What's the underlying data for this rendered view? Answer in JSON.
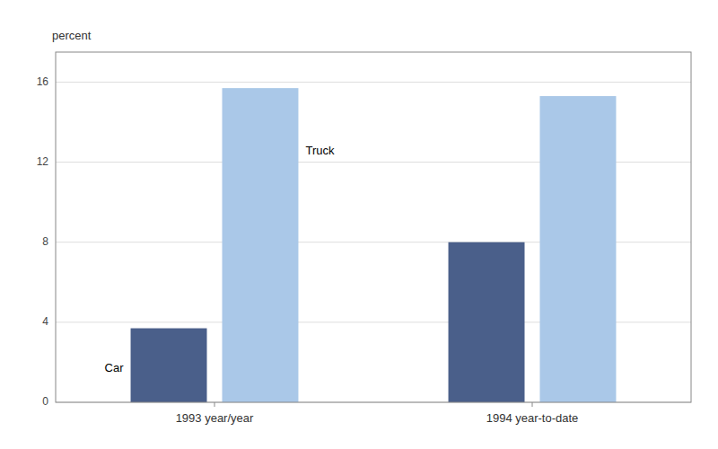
{
  "chart_data": {
    "type": "bar",
    "ylabel": "percent",
    "categories": [
      "1993 year/year",
      "1994 year-to-date"
    ],
    "series": [
      {
        "name": "Car",
        "color": "#4a5f8a",
        "values": [
          3.7,
          8.0
        ]
      },
      {
        "name": "Truck",
        "color": "#aac8e8",
        "values": [
          15.7,
          15.3
        ]
      }
    ],
    "ylim": [
      0,
      17.5
    ],
    "yticks": [
      0,
      4,
      8,
      12,
      16
    ],
    "grid": true
  }
}
